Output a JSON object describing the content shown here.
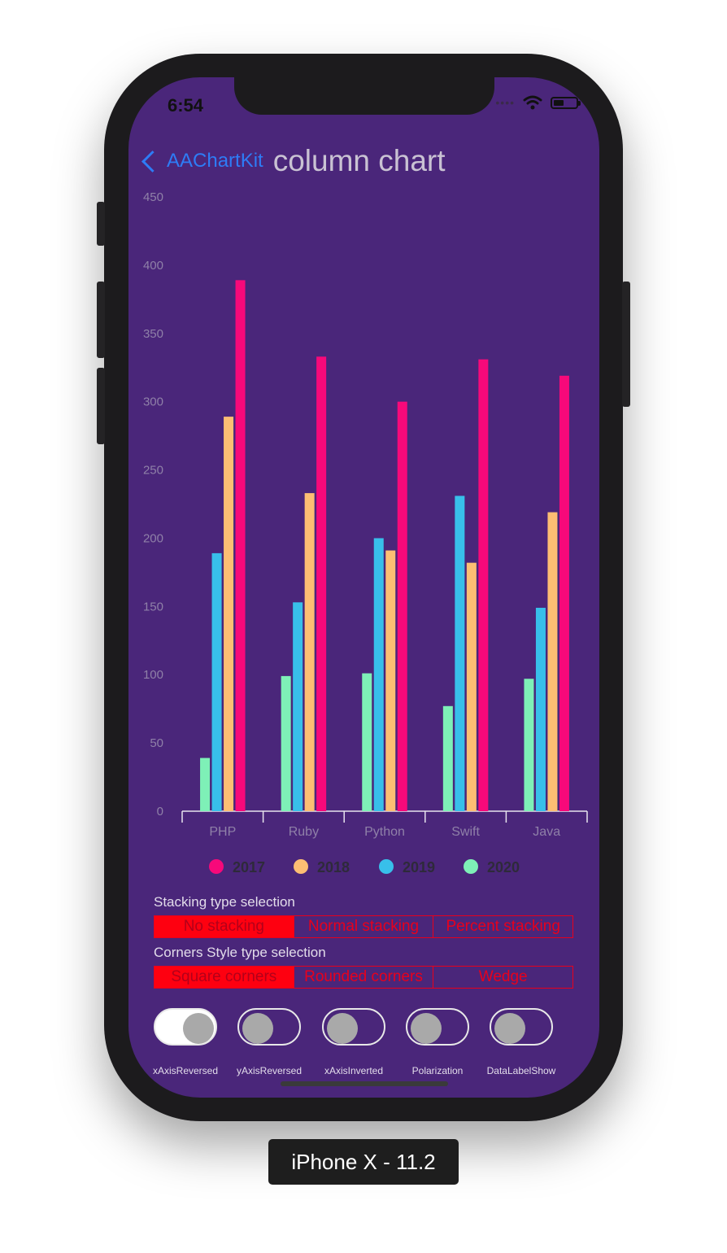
{
  "status_bar": {
    "time": "6:54",
    "signal_dots": "••••",
    "battery_level": 0.45
  },
  "nav": {
    "back_label": "AAChartKit",
    "title": "column chart"
  },
  "chart_data": {
    "type": "bar",
    "categories": [
      "PHP",
      "Ruby",
      "Python",
      "Swift",
      "Java"
    ],
    "series": [
      {
        "name": "2020",
        "color": "#7ef0b7",
        "values": [
          39,
          99,
          101,
          77,
          97
        ]
      },
      {
        "name": "2019",
        "color": "#38bfea",
        "values": [
          189,
          153,
          200,
          231,
          149
        ]
      },
      {
        "name": "2018",
        "color": "#fdbe73",
        "values": [
          289,
          233,
          191,
          182,
          219
        ]
      },
      {
        "name": "2017",
        "color": "#f7097a",
        "values": [
          389,
          333,
          300,
          331,
          319
        ]
      }
    ],
    "legend_order": [
      "2017",
      "2018",
      "2019",
      "2020"
    ],
    "ylim": [
      0,
      450
    ],
    "yticks": [
      0,
      50,
      100,
      150,
      200,
      250,
      300,
      350,
      400,
      450
    ],
    "grid": false,
    "legend_position": "bottom"
  },
  "stacking": {
    "label": "Stacking type selection",
    "options": [
      "No stacking",
      "Normal stacking",
      "Percent stacking"
    ],
    "selected": "No stacking"
  },
  "corners": {
    "label": "Corners Style type selection",
    "options": [
      "Square corners",
      "Rounded corners",
      "Wedge"
    ],
    "selected": "Square corners"
  },
  "switches": [
    {
      "label": "xAxisReversed",
      "on": true
    },
    {
      "label": "yAxisReversed",
      "on": false
    },
    {
      "label": "xAxisInverted",
      "on": false
    },
    {
      "label": "Polarization",
      "on": false
    },
    {
      "label": "DataLabelShow",
      "on": false
    }
  ],
  "device_label": "iPhone X - 11.2"
}
